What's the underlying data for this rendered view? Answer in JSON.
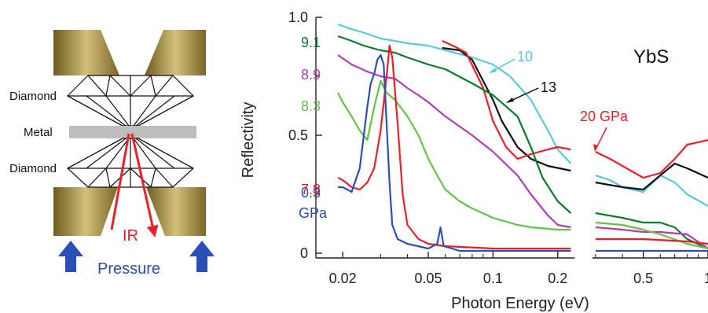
{
  "diagram": {
    "labels": {
      "diamond_top": "Diamond",
      "metal": "Metal",
      "diamond_bottom": "Diamond",
      "ir": "IR",
      "pressure": "Pressure"
    },
    "colors": {
      "anvil": "#a08a3c",
      "metal": "#bdbdbd",
      "ir": "#e8202a",
      "pressure": "#2b4fb5"
    }
  },
  "chart_data": {
    "type": "line",
    "title": "",
    "xlabel": "Photon Energy (eV)",
    "ylabel": "Reflectivity",
    "xscale": "log",
    "xlim": [
      0.015,
      1.0
    ],
    "ylim": [
      -0.02,
      1.0
    ],
    "x_gap": [
      0.24,
      0.29
    ],
    "xticks": [
      {
        "value": 0.02,
        "label": "0.02"
      },
      {
        "value": 0.05,
        "label": "0.05"
      },
      {
        "value": 0.1,
        "label": "0.1"
      },
      {
        "value": 0.2,
        "label": "0.2"
      },
      {
        "value": 0.5,
        "label": "0.5"
      },
      {
        "value": 1.0,
        "label": "1"
      }
    ],
    "yticks": [
      {
        "value": 0,
        "label": "0"
      },
      {
        "value": 0.5,
        "label": "0.5"
      },
      {
        "value": 1.0,
        "label": "1.0"
      }
    ],
    "annotation": "YbS",
    "series": [
      {
        "label": "10",
        "color": "#5bc8dc",
        "points": [
          [
            0.019,
            0.97
          ],
          [
            0.022,
            0.95
          ],
          [
            0.026,
            0.93
          ],
          [
            0.03,
            0.91
          ],
          [
            0.035,
            0.9
          ],
          [
            0.04,
            0.89
          ],
          [
            0.05,
            0.88
          ],
          [
            0.06,
            0.86
          ],
          [
            0.08,
            0.83
          ],
          [
            0.1,
            0.8
          ],
          [
            0.12,
            0.75
          ],
          [
            0.15,
            0.65
          ],
          [
            0.18,
            0.52
          ],
          [
            0.2,
            0.44
          ],
          [
            0.23,
            0.38
          ],
          [
            0.3,
            0.33
          ],
          [
            0.35,
            0.31
          ],
          [
            0.4,
            0.28
          ],
          [
            0.5,
            0.26
          ],
          [
            0.6,
            0.33
          ],
          [
            0.7,
            0.3
          ],
          [
            0.8,
            0.25
          ],
          [
            1.0,
            0.2
          ]
        ]
      },
      {
        "label": "13",
        "color": "#111111",
        "points": [
          [
            0.058,
            0.87
          ],
          [
            0.07,
            0.86
          ],
          [
            0.08,
            0.82
          ],
          [
            0.09,
            0.73
          ],
          [
            0.1,
            0.65
          ],
          [
            0.11,
            0.56
          ],
          [
            0.13,
            0.45
          ],
          [
            0.15,
            0.4
          ],
          [
            0.18,
            0.37
          ],
          [
            0.23,
            0.35
          ],
          [
            0.3,
            0.3
          ],
          [
            0.4,
            0.28
          ],
          [
            0.5,
            0.27
          ],
          [
            0.6,
            0.33
          ],
          [
            0.7,
            0.38
          ],
          [
            0.8,
            0.36
          ],
          [
            1.0,
            0.32
          ]
        ]
      },
      {
        "label": "20 GPa",
        "color": "#e8202a",
        "points": [
          [
            0.058,
            0.9
          ],
          [
            0.065,
            0.88
          ],
          [
            0.075,
            0.85
          ],
          [
            0.09,
            0.7
          ],
          [
            0.1,
            0.56
          ],
          [
            0.115,
            0.45
          ],
          [
            0.13,
            0.4
          ],
          [
            0.15,
            0.42
          ],
          [
            0.18,
            0.44
          ],
          [
            0.2,
            0.45
          ],
          [
            0.23,
            0.44
          ],
          [
            0.3,
            0.43
          ],
          [
            0.35,
            0.4
          ],
          [
            0.4,
            0.37
          ],
          [
            0.5,
            0.32
          ],
          [
            0.6,
            0.34
          ],
          [
            0.7,
            0.4
          ],
          [
            0.8,
            0.46
          ],
          [
            1.0,
            0.48
          ]
        ]
      },
      {
        "label": "9.1",
        "color": "#0b7a2a",
        "points": [
          [
            0.019,
            0.92
          ],
          [
            0.022,
            0.9
          ],
          [
            0.025,
            0.88
          ],
          [
            0.03,
            0.86
          ],
          [
            0.035,
            0.85
          ],
          [
            0.04,
            0.83
          ],
          [
            0.05,
            0.8
          ],
          [
            0.06,
            0.78
          ],
          [
            0.08,
            0.72
          ],
          [
            0.1,
            0.67
          ],
          [
            0.13,
            0.58
          ],
          [
            0.15,
            0.45
          ],
          [
            0.17,
            0.32
          ],
          [
            0.2,
            0.22
          ],
          [
            0.23,
            0.17
          ],
          [
            0.3,
            0.17
          ],
          [
            0.4,
            0.15
          ],
          [
            0.5,
            0.13
          ],
          [
            0.6,
            0.13
          ],
          [
            0.7,
            0.11
          ],
          [
            0.8,
            0.06
          ],
          [
            1.0,
            0.02
          ]
        ]
      },
      {
        "label": "8.9",
        "color": "#b23cb0",
        "points": [
          [
            0.019,
            0.84
          ],
          [
            0.022,
            0.8
          ],
          [
            0.026,
            0.77
          ],
          [
            0.03,
            0.75
          ],
          [
            0.035,
            0.74
          ],
          [
            0.04,
            0.7
          ],
          [
            0.045,
            0.67
          ],
          [
            0.05,
            0.64
          ],
          [
            0.06,
            0.58
          ],
          [
            0.08,
            0.5
          ],
          [
            0.1,
            0.43
          ],
          [
            0.13,
            0.33
          ],
          [
            0.15,
            0.25
          ],
          [
            0.18,
            0.16
          ],
          [
            0.2,
            0.12
          ],
          [
            0.23,
            0.11
          ],
          [
            0.3,
            0.11
          ],
          [
            0.4,
            0.1
          ],
          [
            0.5,
            0.09
          ],
          [
            0.6,
            0.09
          ],
          [
            0.8,
            0.08
          ],
          [
            1.0,
            0.02
          ]
        ]
      },
      {
        "label": "8.3",
        "color": "#66c247",
        "points": [
          [
            0.019,
            0.68
          ],
          [
            0.02,
            0.64
          ],
          [
            0.022,
            0.58
          ],
          [
            0.024,
            0.52
          ],
          [
            0.026,
            0.48
          ],
          [
            0.028,
            0.62
          ],
          [
            0.03,
            0.73
          ],
          [
            0.032,
            0.68
          ],
          [
            0.035,
            0.65
          ],
          [
            0.04,
            0.58
          ],
          [
            0.045,
            0.5
          ],
          [
            0.05,
            0.4
          ],
          [
            0.055,
            0.33
          ],
          [
            0.06,
            0.27
          ],
          [
            0.07,
            0.22
          ],
          [
            0.08,
            0.19
          ],
          [
            0.1,
            0.15
          ],
          [
            0.13,
            0.12
          ],
          [
            0.15,
            0.11
          ],
          [
            0.2,
            0.1
          ],
          [
            0.23,
            0.1
          ],
          [
            0.3,
            0.13
          ],
          [
            0.4,
            0.12
          ],
          [
            0.5,
            0.1
          ],
          [
            0.6,
            0.08
          ],
          [
            0.8,
            0.04
          ],
          [
            1.0,
            0.02
          ]
        ]
      },
      {
        "label": "7.8",
        "color": "#e8202a",
        "points": [
          [
            0.019,
            0.32
          ],
          [
            0.02,
            0.31
          ],
          [
            0.022,
            0.28
          ],
          [
            0.024,
            0.27
          ],
          [
            0.026,
            0.3
          ],
          [
            0.028,
            0.36
          ],
          [
            0.03,
            0.52
          ],
          [
            0.032,
            0.75
          ],
          [
            0.033,
            0.88
          ],
          [
            0.034,
            0.83
          ],
          [
            0.036,
            0.55
          ],
          [
            0.038,
            0.25
          ],
          [
            0.04,
            0.12
          ],
          [
            0.045,
            0.06
          ],
          [
            0.05,
            0.04
          ],
          [
            0.06,
            0.03
          ],
          [
            0.1,
            0.02
          ],
          [
            0.2,
            0.02
          ],
          [
            0.23,
            0.02
          ],
          [
            0.3,
            0.06
          ],
          [
            0.5,
            0.06
          ],
          [
            0.8,
            0.05
          ],
          [
            1.0,
            0.04
          ]
        ]
      },
      {
        "label": "0.3 GPa",
        "color": "#2b4fb5",
        "points": [
          [
            0.019,
            0.28
          ],
          [
            0.02,
            0.28
          ],
          [
            0.022,
            0.26
          ],
          [
            0.024,
            0.36
          ],
          [
            0.026,
            0.62
          ],
          [
            0.027,
            0.72
          ],
          [
            0.028,
            0.76
          ],
          [
            0.029,
            0.82
          ],
          [
            0.03,
            0.84
          ],
          [
            0.031,
            0.8
          ],
          [
            0.032,
            0.55
          ],
          [
            0.033,
            0.3
          ],
          [
            0.034,
            0.12
          ],
          [
            0.036,
            0.06
          ],
          [
            0.04,
            0.04
          ],
          [
            0.05,
            0.02
          ],
          [
            0.055,
            0.04
          ],
          [
            0.057,
            0.11
          ],
          [
            0.059,
            0.03
          ],
          [
            0.07,
            0.01
          ],
          [
            0.1,
            0.01
          ],
          [
            0.2,
            0.01
          ],
          [
            0.23,
            0.01
          ],
          [
            0.3,
            0.01
          ],
          [
            0.5,
            0.01
          ],
          [
            1.0,
            0.01
          ]
        ]
      }
    ],
    "series_labels": [
      {
        "text": "9.1",
        "color": "#0b7a2a"
      },
      {
        "text": "8.9",
        "color": "#b23cb0"
      },
      {
        "text": "8.3",
        "color": "#66c247"
      },
      {
        "text": "7.8",
        "color": "#e8202a"
      },
      {
        "text": "0.3",
        "color": "#2b4fb5"
      },
      {
        "text": "GPa",
        "color": "#2b4fb5"
      },
      {
        "text": "10",
        "color": "#5bc8dc"
      },
      {
        "text": "13",
        "color": "#111111"
      },
      {
        "text": "20 GPa",
        "color": "#e8202a"
      }
    ]
  }
}
